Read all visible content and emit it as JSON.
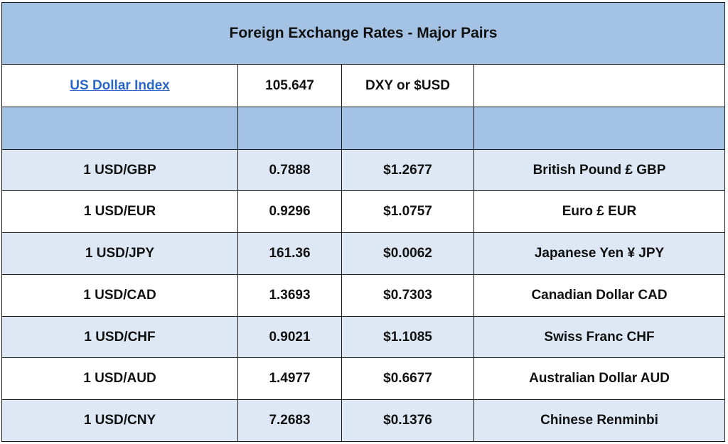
{
  "title": "Foreign Exchange Rates - Major Pairs",
  "index": {
    "name": "US Dollar Index",
    "value": "105.647",
    "symbol": "DXY or $USD",
    "extra": ""
  },
  "pairs": [
    {
      "pair": "1 USD/GBP",
      "rate": "0.7888",
      "usd_value": "$1.2677",
      "currency": "British Pound £ GBP"
    },
    {
      "pair": "1 USD/EUR",
      "rate": "0.9296",
      "usd_value": "$1.0757",
      "currency": "Euro £ EUR"
    },
    {
      "pair": "1 USD/JPY",
      "rate": "161.36",
      "usd_value": "$0.0062",
      "currency": "Japanese Yen ¥ JPY"
    },
    {
      "pair": "1 USD/CAD",
      "rate": "1.3693",
      "usd_value": "$0.7303",
      "currency": "Canadian Dollar CAD"
    },
    {
      "pair": "1 USD/CHF",
      "rate": "0.9021",
      "usd_value": "$1.1085",
      "currency": "Swiss Franc CHF"
    },
    {
      "pair": "1 USD/AUD",
      "rate": "1.4977",
      "usd_value": "$0.6677",
      "currency": "Australian Dollar AUD"
    },
    {
      "pair": "1 USD/CNY",
      "rate": "7.2683",
      "usd_value": "$0.1376",
      "currency": "Chinese Renminbi"
    }
  ],
  "colors": {
    "header_bg": "#a4c2e4",
    "stripe_bg": "#dde8f4",
    "link": "#2b66c9"
  }
}
